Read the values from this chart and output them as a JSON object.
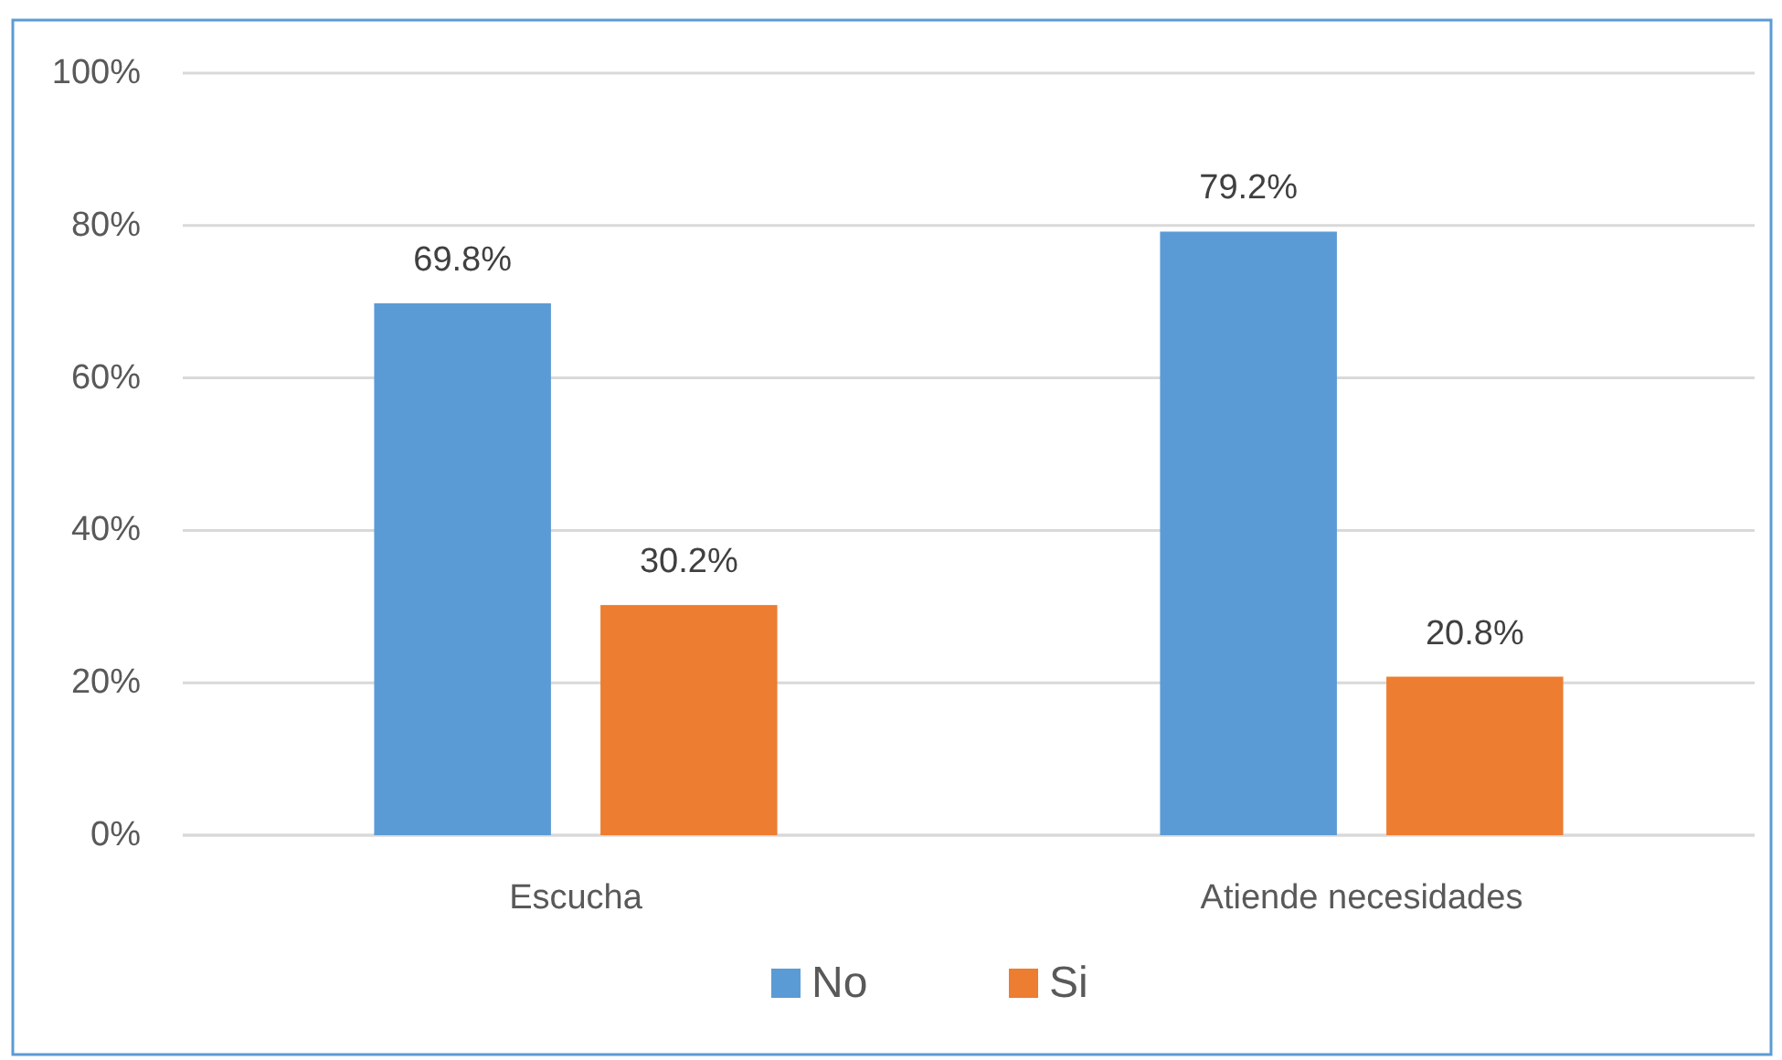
{
  "chart_data": {
    "type": "bar",
    "categories": [
      "Escucha",
      "Atiende necesidades"
    ],
    "series": [
      {
        "name": "No",
        "color": "#5b9bd5",
        "values": [
          69.8,
          79.2
        ],
        "value_labels": [
          "69.8%",
          "79.2%"
        ]
      },
      {
        "name": "Si",
        "color": "#ed7d31",
        "values": [
          30.2,
          20.8
        ],
        "value_labels": [
          "30.2%",
          "20.8%"
        ]
      }
    ],
    "ylim": [
      0,
      100
    ],
    "yticks": [
      {
        "value": 0,
        "label": "0%"
      },
      {
        "value": 20,
        "label": "20%"
      },
      {
        "value": 40,
        "label": "40%"
      },
      {
        "value": 60,
        "label": "60%"
      },
      {
        "value": 80,
        "label": "80%"
      },
      {
        "value": 100,
        "label": "100%"
      }
    ],
    "grid": "y",
    "legend": "bottom"
  }
}
